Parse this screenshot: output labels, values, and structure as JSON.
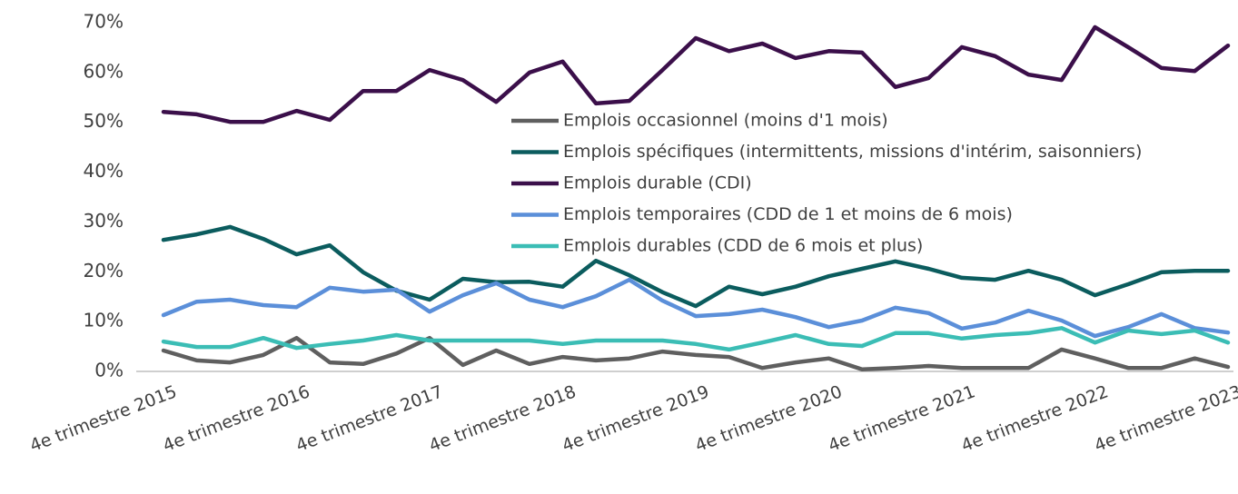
{
  "chart_data": {
    "type": "line",
    "categories": [
      "4e trimestre 2015",
      null,
      null,
      null,
      "4e trimestre 2016",
      null,
      null,
      null,
      "4e trimestre 2017",
      null,
      null,
      null,
      "4e trimestre 2018",
      null,
      null,
      null,
      "4e trimestre 2019",
      null,
      null,
      null,
      "4e trimestre 2020",
      null,
      null,
      null,
      "4e trimestre 2021",
      null,
      null,
      null,
      "4e trimestre 2022",
      null,
      null,
      null,
      "4e trimestre 2023"
    ],
    "series": [
      {
        "name": "Emplois occasionnel (moins d'1 mois)",
        "color": "#5f5f5f",
        "values": [
          4.2,
          2.2,
          1.8,
          3.3,
          6.7,
          1.8,
          1.5,
          3.6,
          6.7,
          1.3,
          4.2,
          1.5,
          2.9,
          2.2,
          2.6,
          4.0,
          3.3,
          2.9,
          0.7,
          1.8,
          2.6,
          0.4,
          0.7,
          1.1,
          0.7,
          0.7,
          0.7,
          4.4,
          2.6,
          0.7,
          0.7,
          2.6,
          0.9
        ]
      },
      {
        "name": "Emplois spécifiques (intermittents, missions d'intérim, saisonniers)",
        "color": "#0b5c5e",
        "values": [
          26.4,
          27.5,
          29.0,
          26.6,
          23.5,
          25.3,
          19.9,
          16.2,
          14.4,
          18.6,
          17.9,
          18.0,
          17.0,
          22.2,
          19.3,
          15.9,
          13.1,
          17.0,
          15.5,
          17.0,
          19.1,
          20.6,
          22.1,
          20.6,
          18.8,
          18.4,
          20.2,
          18.4,
          15.3,
          17.5,
          19.9,
          20.2,
          20.2
        ]
      },
      {
        "name": "Emplois durable (CDI)",
        "color": "#3b0f4a",
        "values": [
          52.1,
          51.6,
          50.1,
          50.1,
          52.3,
          50.5,
          56.3,
          56.3,
          60.5,
          58.5,
          54.1,
          60.0,
          62.2,
          53.8,
          54.3,
          60.5,
          66.9,
          64.3,
          65.8,
          62.9,
          64.3,
          64.0,
          57.1,
          58.9,
          65.1,
          63.3,
          59.6,
          58.5,
          69.1,
          65.1,
          60.9,
          60.3,
          65.4
        ]
      },
      {
        "name": "Emplois temporaires (CDD de 1 et moins de 6 mois)",
        "color": "#5b8fd9",
        "values": [
          11.3,
          14.0,
          14.4,
          13.3,
          12.9,
          16.8,
          16.0,
          16.4,
          12.0,
          15.3,
          17.7,
          14.4,
          12.9,
          15.1,
          18.4,
          14.2,
          11.1,
          11.5,
          12.4,
          10.9,
          8.9,
          10.2,
          12.8,
          11.7,
          8.6,
          9.8,
          12.2,
          10.2,
          7.1,
          8.9,
          11.5,
          8.7,
          7.8
        ]
      },
      {
        "name": "Emplois durables (CDD de 6 mois et plus)",
        "color": "#3bbdb5",
        "values": [
          6.0,
          4.9,
          4.9,
          6.7,
          4.7,
          5.5,
          6.2,
          7.3,
          6.2,
          6.2,
          6.2,
          6.2,
          5.5,
          6.2,
          6.2,
          6.2,
          5.5,
          4.4,
          5.8,
          7.3,
          5.5,
          5.1,
          7.7,
          7.7,
          6.6,
          7.3,
          7.7,
          8.7,
          5.8,
          8.2,
          7.5,
          8.2,
          5.8
        ]
      }
    ],
    "ylim": [
      0,
      70
    ],
    "yticks": [
      {
        "value": 0,
        "label": "0%"
      },
      {
        "value": 10,
        "label": "10%"
      },
      {
        "value": 20,
        "label": "20%"
      },
      {
        "value": 30,
        "label": "30%"
      },
      {
        "value": 40,
        "label": "40%"
      },
      {
        "value": 50,
        "label": "50%"
      },
      {
        "value": 60,
        "label": "60%"
      },
      {
        "value": 70,
        "label": "70%"
      }
    ],
    "grid": false,
    "legend": "center"
  }
}
